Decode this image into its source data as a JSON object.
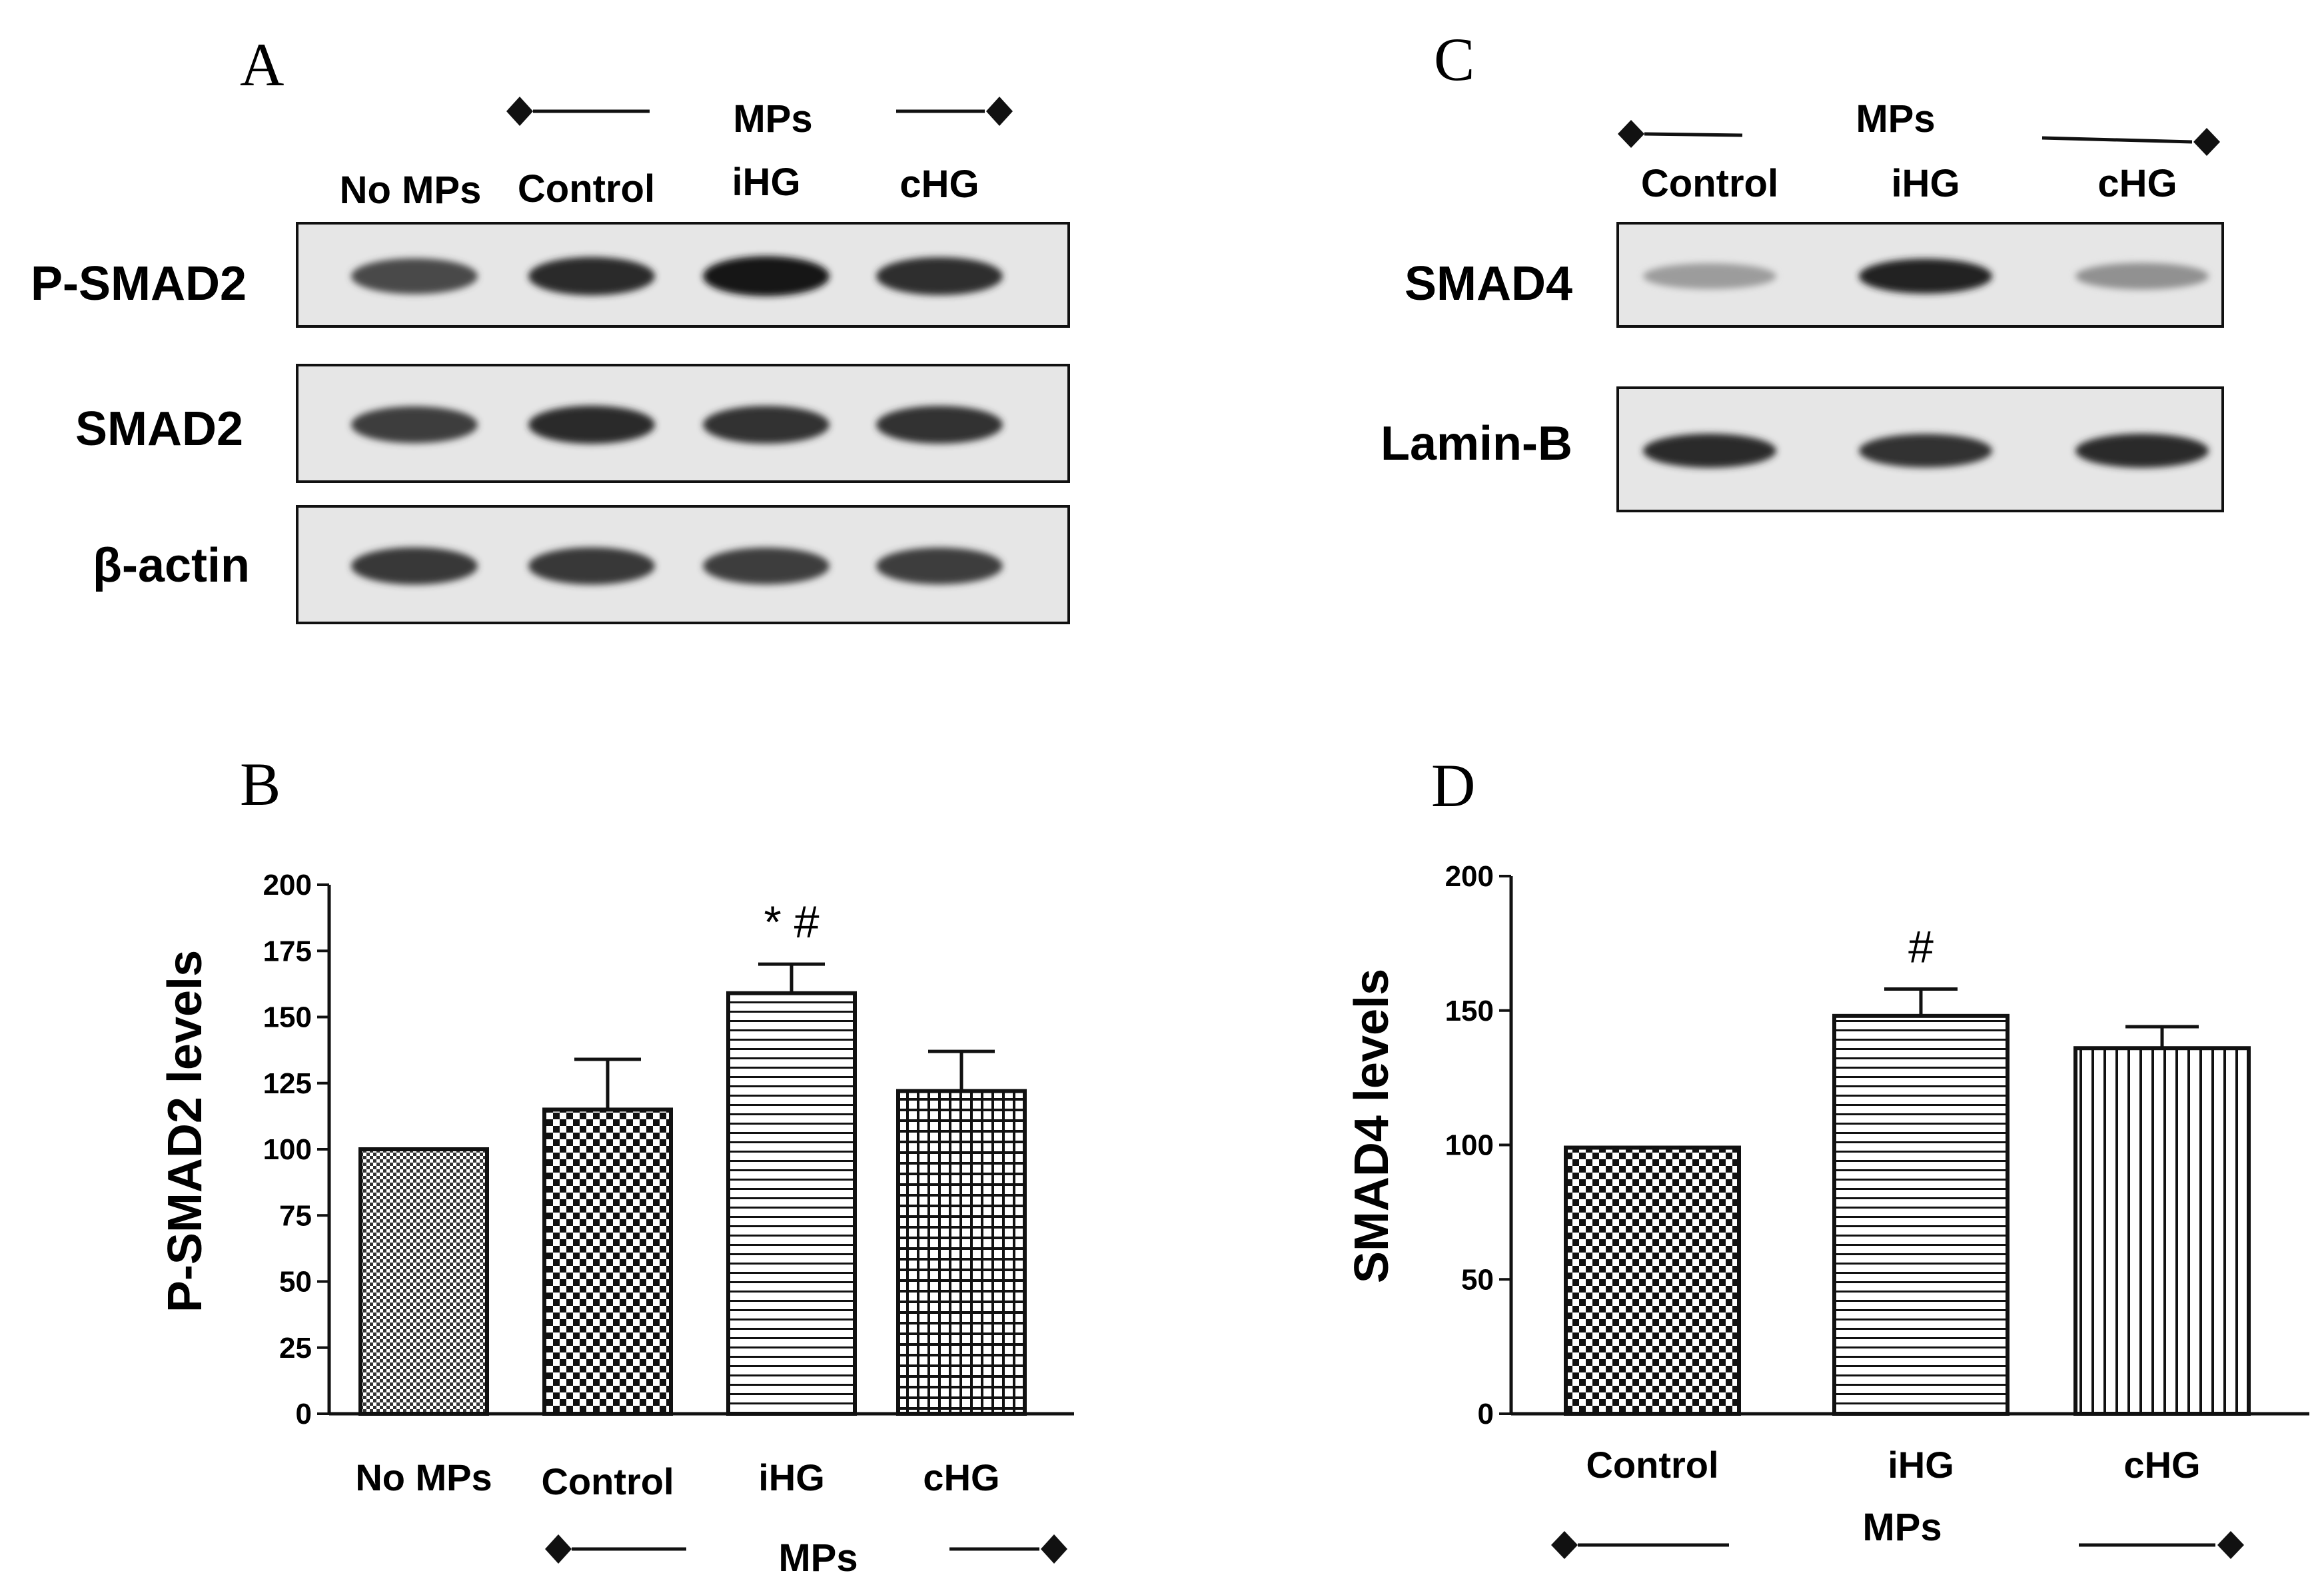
{
  "panels": {
    "A": "A",
    "B": "B",
    "C": "C",
    "D": "D"
  },
  "blot_A": {
    "group_label": "MPs",
    "lanes": [
      "No MPs",
      "Control",
      "iHG",
      "cHG"
    ],
    "proteins": [
      "P-SMAD2",
      "SMAD2",
      "β-actin"
    ],
    "band_strength": [
      [
        0.72,
        0.86,
        0.95,
        0.84
      ],
      [
        0.78,
        0.85,
        0.83,
        0.83
      ],
      [
        0.8,
        0.8,
        0.78,
        0.78
      ]
    ]
  },
  "blot_C": {
    "group_label": "MPs",
    "lanes": [
      "Control",
      "iHG",
      "cHG"
    ],
    "proteins": [
      "SMAD4",
      "Lamin-B"
    ],
    "band_strength": [
      [
        0.35,
        0.9,
        0.4
      ],
      [
        0.85,
        0.82,
        0.85
      ]
    ]
  },
  "chart_data": [
    {
      "type": "bar",
      "panel": "B",
      "categories": [
        "No MPs",
        "Control",
        "iHG",
        "cHG"
      ],
      "values": [
        100,
        115,
        159,
        122
      ],
      "errors": [
        0,
        19,
        11,
        15
      ],
      "annotations": [
        "",
        "",
        "* #",
        ""
      ],
      "patterns": [
        "fine-check",
        "check",
        "hlines",
        "grid"
      ],
      "ylabel": "P-SMAD2 levels",
      "ylim": [
        0,
        200
      ],
      "yticks": [
        0,
        25,
        50,
        75,
        100,
        125,
        150,
        175,
        200
      ],
      "group_label": "MPs"
    },
    {
      "type": "bar",
      "panel": "D",
      "categories": [
        "Control",
        "iHG",
        "cHG"
      ],
      "values": [
        99,
        148,
        136
      ],
      "errors": [
        0,
        10,
        8
      ],
      "annotations": [
        "",
        "#",
        ""
      ],
      "patterns": [
        "check",
        "hlines",
        "vlines"
      ],
      "ylabel": "SMAD4 levels",
      "ylim": [
        0,
        200
      ],
      "yticks": [
        0,
        50,
        100,
        150,
        200
      ],
      "group_label": "MPs"
    }
  ]
}
